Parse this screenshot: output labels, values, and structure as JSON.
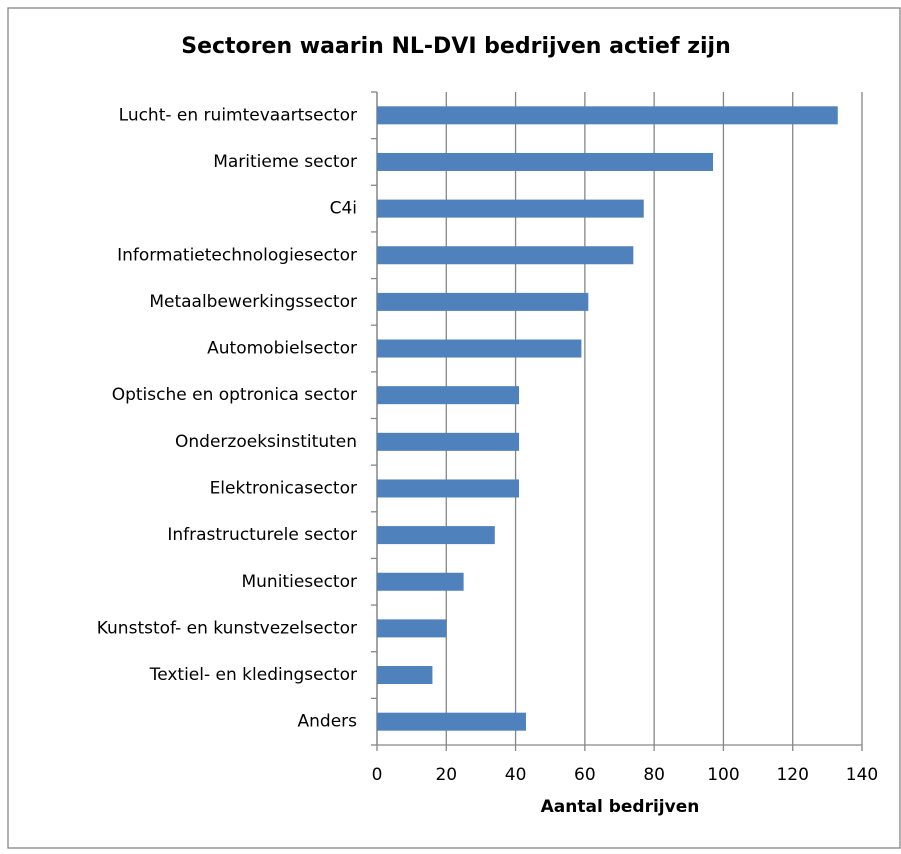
{
  "chart_data": {
    "type": "bar",
    "orientation": "horizontal",
    "title": "Sectoren waarin NL-DVI bedrijven actief zijn",
    "categories": [
      "Lucht- en ruimtevaartsector",
      "Maritieme sector",
      "C4i",
      "Informatietechnologiesector",
      "Metaalbewerkingssector",
      "Automobielsector",
      "Optische en optronica sector",
      "Onderzoeksinstituten",
      "Elektronicasector",
      "Infrastructurele sector",
      "Munitiesector",
      "Kunststof- en kunstvezelsector",
      "Textiel- en kledingsector",
      "Anders"
    ],
    "values": [
      133,
      97,
      77,
      74,
      61,
      59,
      41,
      41,
      41,
      34,
      25,
      20,
      16,
      43
    ],
    "color": "#4f81bd",
    "xlabel": "Aantal bedrijven",
    "xlim": [
      0,
      140
    ],
    "xticks": [
      0,
      20,
      40,
      60,
      80,
      100,
      120,
      140
    ],
    "grid": true
  }
}
